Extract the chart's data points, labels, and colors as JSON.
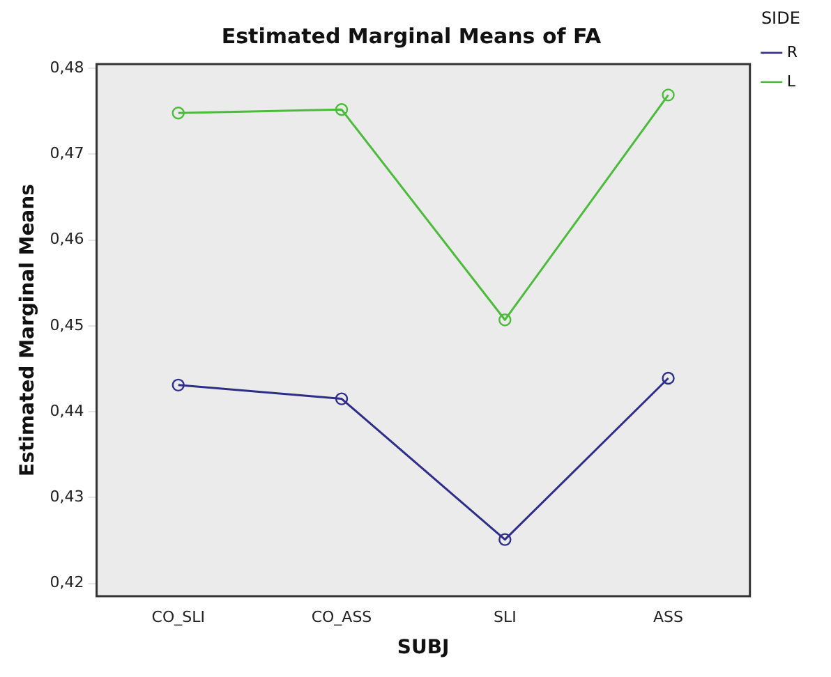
{
  "chart_data": {
    "type": "line",
    "title": "Estimated Marginal Means of FA",
    "xlabel": "SUBJ",
    "ylabel": "Estimated Marginal Means",
    "legend_title": "SIDE",
    "categories": [
      "CO_SLI",
      "CO_ASS",
      "SLI",
      "ASS"
    ],
    "series": [
      {
        "name": "R",
        "color": "#2e2e8a",
        "values": [
          0.4431,
          0.4415,
          0.4251,
          0.4439
        ]
      },
      {
        "name": "L",
        "color": "#4cbb3c",
        "values": [
          0.4748,
          0.4752,
          0.4507,
          0.4769
        ]
      }
    ],
    "ylim": [
      0.4185,
      0.4805
    ],
    "yticks": [
      {
        "value": 0.42,
        "label": "0,42"
      },
      {
        "value": 0.43,
        "label": "0,43"
      },
      {
        "value": 0.44,
        "label": "0,44"
      },
      {
        "value": 0.45,
        "label": "0,45"
      },
      {
        "value": 0.46,
        "label": "0,46"
      },
      {
        "value": 0.47,
        "label": "0,47"
      },
      {
        "value": 0.48,
        "label": "0,48"
      }
    ],
    "grid": false,
    "legend": "top right",
    "marker": "circle",
    "line_style": "solid"
  }
}
